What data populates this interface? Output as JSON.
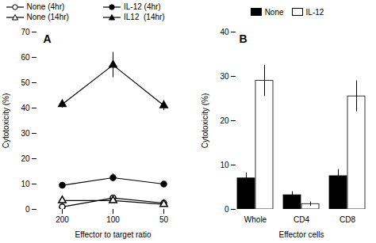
{
  "chart_data": [
    {
      "type": "line",
      "categories": [
        "200",
        "100",
        "50"
      ],
      "xlabel": "Effector to target ratio",
      "ylabel": "Cytotoxicity (%)",
      "ylim": [
        0,
        70
      ],
      "yticks": [
        0,
        10,
        20,
        30,
        40,
        50,
        60,
        70
      ],
      "legend": "top",
      "annotations": [
        "A"
      ],
      "series": [
        {
          "name": "None (4hr)",
          "color": "black",
          "marker": "circle-open",
          "values": [
            1.0,
            4.5,
            2.5
          ],
          "error": [
            0.5,
            0.5,
            0.5
          ]
        },
        {
          "name": "IL-12 (4hr)",
          "color": "black",
          "marker": "circle",
          "values": [
            9.5,
            12.5,
            10.0
          ],
          "error": [
            1.0,
            1.5,
            0.8
          ]
        },
        {
          "name": "None (14hr)",
          "color": "black",
          "marker": "triangle-open",
          "values": [
            3.5,
            3.5,
            2.0
          ],
          "error": [
            0.5,
            0.5,
            0.5
          ]
        },
        {
          "name": "IL12  (14hr)",
          "color": "black",
          "marker": "triangle",
          "values": [
            41.5,
            57.0,
            41.0
          ],
          "error": [
            1.5,
            5.0,
            2.0
          ]
        }
      ]
    },
    {
      "type": "bar",
      "categories": [
        "Whole",
        "CD4",
        "CD8"
      ],
      "xlabel": "Effector cells",
      "ylabel": "Cytotoxicity (%)",
      "ylim": [
        0,
        40
      ],
      "yticks": [
        0,
        10,
        20,
        30,
        40
      ],
      "legend": "top",
      "annotations": [
        "B"
      ],
      "series": [
        {
          "name": "None",
          "color": "black",
          "values": [
            7.0,
            3.2,
            7.5
          ],
          "error": [
            1.2,
            0.8,
            1.5
          ]
        },
        {
          "name": "IL-12",
          "color": "white",
          "values": [
            29.0,
            1.2,
            25.5
          ],
          "error": [
            3.5,
            0.5,
            3.5
          ]
        }
      ]
    }
  ]
}
